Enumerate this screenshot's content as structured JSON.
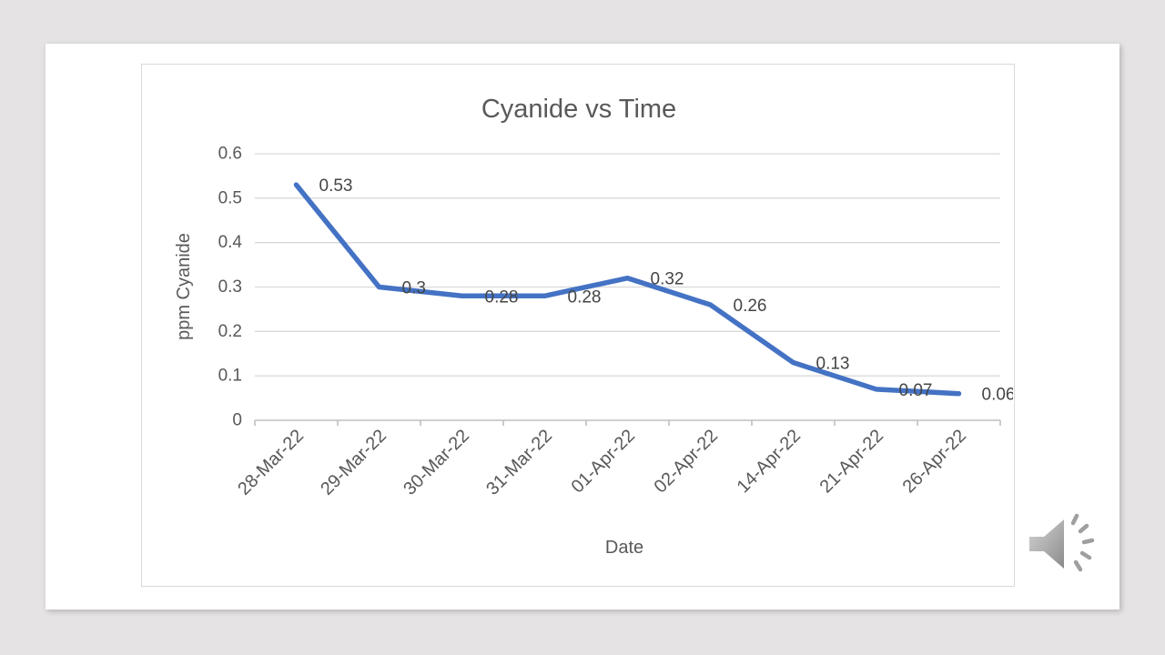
{
  "page": {
    "background_color": "#e5e3e4",
    "slide_background": "#ffffff"
  },
  "chart_data": {
    "type": "line",
    "title": "Cyanide vs Time",
    "xlabel": "Date",
    "ylabel": "ppm Cyanide",
    "categories": [
      "28-Mar-22",
      "29-Mar-22",
      "30-Mar-22",
      "31-Mar-22",
      "01-Apr-22",
      "02-Apr-22",
      "14-Apr-22",
      "21-Apr-22",
      "26-Apr-22"
    ],
    "series": [
      {
        "name": "ppm Cyanide",
        "values": [
          0.53,
          0.3,
          0.28,
          0.28,
          0.32,
          0.26,
          0.13,
          0.07,
          0.06
        ]
      }
    ],
    "data_labels": [
      "0.53",
      "0.3",
      "0.28",
      "0.28",
      "0.32",
      "0.26",
      "0.13",
      "0.07",
      "0.06"
    ],
    "ylim": [
      0,
      0.6
    ],
    "ytick_labels": [
      "0",
      "0.1",
      "0.2",
      "0.3",
      "0.4",
      "0.5",
      "0.6"
    ],
    "xtick_rotation": -45,
    "grid": true,
    "legend": "none",
    "line_color": "#4472C4",
    "text_color": "#595959",
    "data_label_color": "#454545",
    "gridline_color": "#d9d9d9",
    "axis_color": "#bfbfbf",
    "border_color": "#d9d9d9"
  },
  "audio": {
    "icon": "speaker-with-sound-waves-icon"
  }
}
